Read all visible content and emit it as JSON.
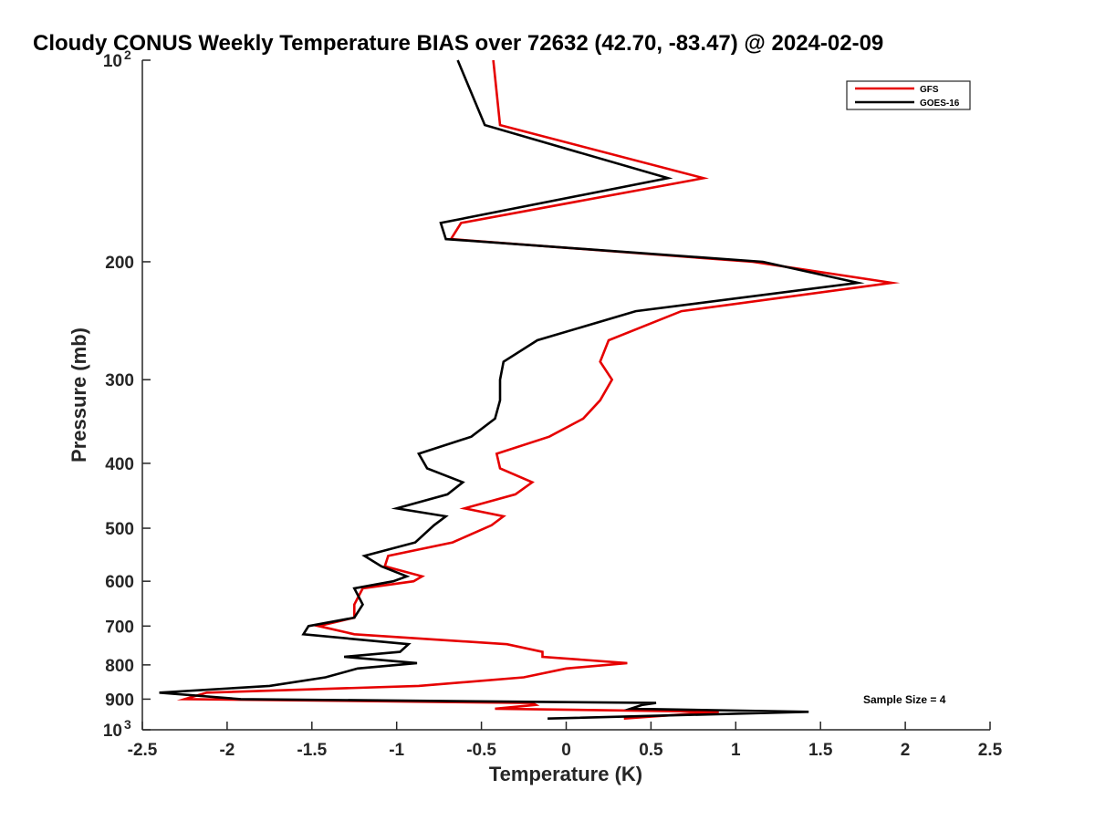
{
  "chart_data": {
    "type": "line",
    "title": "Cloudy CONUS Weekly Temperature BIAS over 72632 (42.70, -83.47) @ 2024-02-09",
    "xlabel": "Temperature (K)",
    "ylabel": "Pressure (mb)",
    "xlim": [
      -2.5,
      2.5
    ],
    "ylim": [
      100,
      1000
    ],
    "yscale": "log",
    "y_direction": "reversed",
    "grid": false,
    "x_ticks": [
      "-2.5",
      "-2",
      "-1.5",
      "-1",
      "-0.5",
      "0",
      "0.5",
      "1",
      "1.5",
      "2",
      "2.5"
    ],
    "x_tick_values": [
      -2.5,
      -2,
      -1.5,
      -1,
      -0.5,
      0,
      0.5,
      1,
      1.5,
      2,
      2.5
    ],
    "y_ticks": [
      {
        "value": 100,
        "base": "10",
        "exp": "2"
      },
      {
        "value": 200,
        "label": "200"
      },
      {
        "value": 300,
        "label": "300"
      },
      {
        "value": 400,
        "label": "400"
      },
      {
        "value": 500,
        "label": "500"
      },
      {
        "value": 600,
        "label": "600"
      },
      {
        "value": 700,
        "label": "700"
      },
      {
        "value": 800,
        "label": "800"
      },
      {
        "value": 900,
        "label": "900"
      },
      {
        "value": 1000,
        "base": "10",
        "exp": "3"
      }
    ],
    "legend_position": "top-right",
    "annotation": "Sample Size = 4",
    "series": [
      {
        "name": "GFS",
        "color": "#e60000",
        "points": [
          [
            -0.43,
            100
          ],
          [
            -0.39,
            125
          ],
          [
            0.81,
            150
          ],
          [
            -0.62,
            175
          ],
          [
            -0.68,
            185
          ],
          [
            1.1,
            200
          ],
          [
            1.92,
            215
          ],
          [
            0.68,
            237
          ],
          [
            0.25,
            262
          ],
          [
            0.2,
            282
          ],
          [
            0.27,
            300
          ],
          [
            0.2,
            322
          ],
          [
            0.1,
            343
          ],
          [
            -0.1,
            365
          ],
          [
            -0.41,
            387
          ],
          [
            -0.39,
            407
          ],
          [
            -0.2,
            427
          ],
          [
            -0.3,
            445
          ],
          [
            -0.6,
            467
          ],
          [
            -0.37,
            480
          ],
          [
            -0.44,
            495
          ],
          [
            -0.67,
            525
          ],
          [
            -1.05,
            550
          ],
          [
            -1.07,
            570
          ],
          [
            -0.85,
            590
          ],
          [
            -0.9,
            600
          ],
          [
            -1.2,
            615
          ],
          [
            -1.25,
            650
          ],
          [
            -1.25,
            680
          ],
          [
            -1.46,
            700
          ],
          [
            -1.25,
            720
          ],
          [
            -0.35,
            745
          ],
          [
            -0.14,
            765
          ],
          [
            -0.14,
            778
          ],
          [
            0.36,
            795
          ],
          [
            0.0,
            810
          ],
          [
            -0.25,
            835
          ],
          [
            -0.87,
            860
          ],
          [
            -2.12,
            880
          ],
          [
            -2.25,
            900
          ],
          [
            -0.2,
            912
          ],
          [
            -0.18,
            918
          ],
          [
            -0.42,
            930
          ],
          [
            0.9,
            940
          ],
          [
            0.34,
            962
          ]
        ]
      },
      {
        "name": "GOES-16",
        "color": "#000000",
        "points": [
          [
            -0.64,
            100
          ],
          [
            -0.48,
            125
          ],
          [
            0.6,
            150
          ],
          [
            -0.74,
            175
          ],
          [
            -0.71,
            185
          ],
          [
            1.16,
            200
          ],
          [
            1.72,
            215
          ],
          [
            0.41,
            237
          ],
          [
            -0.17,
            262
          ],
          [
            -0.37,
            282
          ],
          [
            -0.39,
            300
          ],
          [
            -0.39,
            322
          ],
          [
            -0.42,
            343
          ],
          [
            -0.56,
            365
          ],
          [
            -0.87,
            387
          ],
          [
            -0.82,
            407
          ],
          [
            -0.61,
            427
          ],
          [
            -0.7,
            445
          ],
          [
            -1.0,
            467
          ],
          [
            -0.71,
            480
          ],
          [
            -0.78,
            495
          ],
          [
            -0.89,
            525
          ],
          [
            -1.19,
            550
          ],
          [
            -1.09,
            570
          ],
          [
            -0.94,
            590
          ],
          [
            -1.02,
            600
          ],
          [
            -1.25,
            615
          ],
          [
            -1.2,
            650
          ],
          [
            -1.25,
            680
          ],
          [
            -1.52,
            700
          ],
          [
            -1.55,
            720
          ],
          [
            -0.93,
            745
          ],
          [
            -0.98,
            765
          ],
          [
            -1.31,
            778
          ],
          [
            -0.88,
            795
          ],
          [
            -1.23,
            810
          ],
          [
            -1.42,
            835
          ],
          [
            -1.75,
            860
          ],
          [
            -2.4,
            880
          ],
          [
            -1.92,
            900
          ],
          [
            0.53,
            912
          ],
          [
            0.45,
            918
          ],
          [
            0.38,
            930
          ],
          [
            1.43,
            940
          ],
          [
            -0.11,
            962
          ]
        ]
      }
    ]
  }
}
